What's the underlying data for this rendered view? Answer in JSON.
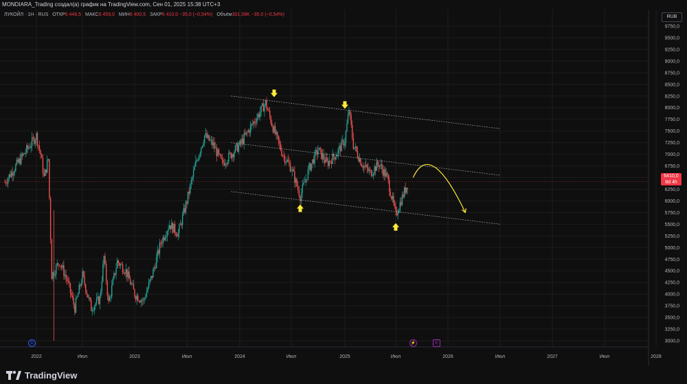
{
  "header": {
    "title": "MONDIARA_Trading создал(а) график на TradingView.com, Сен 01, 2025 15:38 UTC+3"
  },
  "legend": {
    "symbol": "ЛУКОЙЛ · 1Н · RUS",
    "open_label": "ОТКР",
    "open_value": "6 446,5",
    "high_label": "МАКС",
    "high_value": "6 459,0",
    "low_label": "МИН",
    "low_value": "6 400,5",
    "close_label": "ЗАКР",
    "close_value": "6 410,0",
    "change": "−35,0 (−0,54%)",
    "volume_label": "Объём",
    "volume_value": "301,59K",
    "volume_change": "−35,0 (−0,54%)"
  },
  "currency": "RUB",
  "price_tag": {
    "value": "6410,0",
    "time": "8d 4h"
  },
  "brand": {
    "name": "TradingView"
  },
  "markers": [
    {
      "label": "D",
      "color": "#2962ff"
    },
    {
      "label": "⚡",
      "color": "#9c27b0"
    },
    {
      "label": "E",
      "color": "#9c27b0"
    }
  ],
  "colors": {
    "up": "#26a69a",
    "down": "#ef5350",
    "arrow_highlight": "#ffeb3b",
    "projection": "#ffeb3b",
    "price_line": "#f23645"
  },
  "chart_data": {
    "type": "candlestick",
    "y_ticks": [
      "9750,0",
      "9500,0",
      "9250,0",
      "9000,0",
      "8750,0",
      "8500,0",
      "8250,0",
      "8000,0",
      "7750,0",
      "7500,0",
      "7250,0",
      "7000,0",
      "6750,0",
      "6500,0",
      "6250,0",
      "6000,0",
      "5750,0",
      "5500,0",
      "5250,0",
      "5000,0",
      "4750,0",
      "4500,0",
      "4250,0",
      "4000,0",
      "3750,0",
      "3500,0",
      "3250,0",
      "3000,0"
    ],
    "x_ticks": [
      "2022",
      "Июл",
      "2023",
      "Июл",
      "2024",
      "Июл",
      "2025",
      "Июл",
      "2026",
      "Июл",
      "2027",
      "Июл",
      "2028"
    ],
    "ylim": [
      3000,
      9750
    ],
    "current_price": 6410,
    "price_path": [
      {
        "x": "2021-12",
        "y": 6400
      },
      {
        "x": "2022-01",
        "y": 7400
      },
      {
        "x": "2022-01",
        "y": 7000
      },
      {
        "x": "2022-02",
        "y": 6500
      },
      {
        "x": "2022-02",
        "y": 6900
      },
      {
        "x": "2022-03",
        "y": 4400
      },
      {
        "x": "2022-04",
        "y": 4700
      },
      {
        "x": "2022-05",
        "y": 4300
      },
      {
        "x": "2022-06",
        "y": 3700
      },
      {
        "x": "2022-07",
        "y": 4400
      },
      {
        "x": "2022-08",
        "y": 3700
      },
      {
        "x": "2022-09",
        "y": 3900
      },
      {
        "x": "2022-09",
        "y": 4800
      },
      {
        "x": "2022-10",
        "y": 3800
      },
      {
        "x": "2022-11",
        "y": 4700
      },
      {
        "x": "2022-12",
        "y": 4500
      },
      {
        "x": "2023-01",
        "y": 4000
      },
      {
        "x": "2023-02",
        "y": 3850
      },
      {
        "x": "2023-03",
        "y": 4400
      },
      {
        "x": "2023-04",
        "y": 5100
      },
      {
        "x": "2023-05",
        "y": 5500
      },
      {
        "x": "2023-06",
        "y": 5300
      },
      {
        "x": "2023-07",
        "y": 6000
      },
      {
        "x": "2023-08",
        "y": 6800
      },
      {
        "x": "2023-09",
        "y": 7400
      },
      {
        "x": "2023-10",
        "y": 7200
      },
      {
        "x": "2023-11",
        "y": 6800
      },
      {
        "x": "2023-12",
        "y": 7000
      },
      {
        "x": "2024-01",
        "y": 7200
      },
      {
        "x": "2024-02",
        "y": 7500
      },
      {
        "x": "2024-03",
        "y": 7800
      },
      {
        "x": "2024-04",
        "y": 8100
      },
      {
        "x": "2024-05",
        "y": 7500
      },
      {
        "x": "2024-06",
        "y": 7000
      },
      {
        "x": "2024-07",
        "y": 6700
      },
      {
        "x": "2024-08",
        "y": 6100
      },
      {
        "x": "2024-09",
        "y": 6700
      },
      {
        "x": "2024-10",
        "y": 7100
      },
      {
        "x": "2024-11",
        "y": 6800
      },
      {
        "x": "2024-12",
        "y": 7000
      },
      {
        "x": "2025-01",
        "y": 7300
      },
      {
        "x": "2025-01",
        "y": 7950
      },
      {
        "x": "2025-02",
        "y": 7200
      },
      {
        "x": "2025-03",
        "y": 6800
      },
      {
        "x": "2025-04",
        "y": 6600
      },
      {
        "x": "2025-05",
        "y": 6800
      },
      {
        "x": "2025-06",
        "y": 6500
      },
      {
        "x": "2025-07",
        "y": 5700
      },
      {
        "x": "2025-08",
        "y": 6200
      },
      {
        "x": "2025-08",
        "y": 6410
      }
    ],
    "drawings": {
      "channel_upper": [
        {
          "x": "2023-12",
          "y": 8250
        },
        {
          "x": "2026-07",
          "y": 7550
        }
      ],
      "channel_middle": [
        {
          "x": "2023-12",
          "y": 7250
        },
        {
          "x": "2026-07",
          "y": 6550
        }
      ],
      "channel_lower": [
        {
          "x": "2023-12",
          "y": 6200
        },
        {
          "x": "2026-07",
          "y": 5500
        }
      ],
      "down_arrows": [
        {
          "x": "2024-05",
          "y": 8300
        },
        {
          "x": "2025-01",
          "y": 8050
        }
      ],
      "up_arrows": [
        {
          "x": "2024-08",
          "y": 5850
        },
        {
          "x": "2025-07",
          "y": 5450
        }
      ],
      "projection": [
        {
          "x": "2025-09",
          "y": 6500
        },
        {
          "x": "2025-11",
          "y": 6730
        },
        {
          "x": "2026-03",
          "y": 5750
        }
      ]
    }
  }
}
